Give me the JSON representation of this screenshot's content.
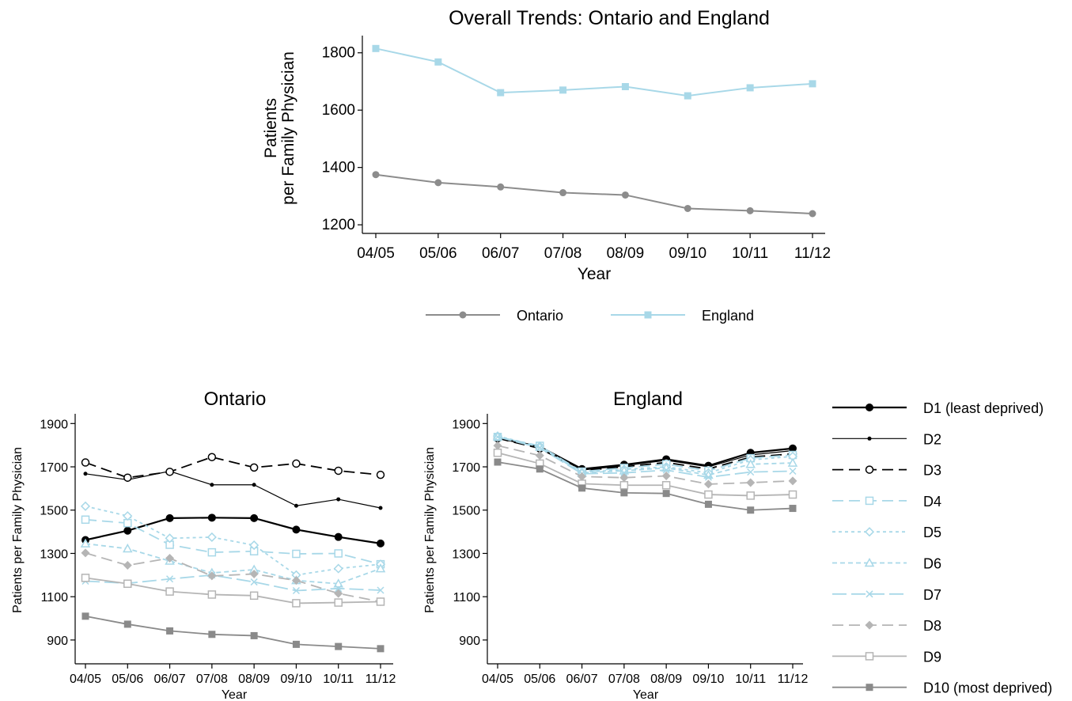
{
  "chart_data": [
    {
      "type": "line",
      "title": "Overall Trends: Ontario and England",
      "xlabel": "Year",
      "ylabel": "Patients per Family Physician",
      "ylabel_lines": [
        "Patients",
        "per Family Physician"
      ],
      "x": [
        "04/05",
        "05/06",
        "06/07",
        "07/08",
        "08/09",
        "09/10",
        "10/11",
        "11/12"
      ],
      "ylim": [
        1170,
        1860
      ],
      "yticks": [
        1200,
        1400,
        1600,
        1800
      ],
      "legend_position": "bottom",
      "series": [
        {
          "name": "Ontario",
          "color": "#8c8c8c",
          "marker": "circle",
          "dash": "solid",
          "values": [
            1375,
            1347,
            1332,
            1312,
            1304,
            1257,
            1249,
            1239
          ]
        },
        {
          "name": "England",
          "color": "#a8d8e8",
          "marker": "square",
          "dash": "solid",
          "values": [
            1815,
            1768,
            1661,
            1670,
            1682,
            1650,
            1678,
            1692
          ]
        }
      ]
    },
    {
      "type": "line",
      "title": "Ontario",
      "xlabel": "Year",
      "ylabel": "Patients per Family Physician",
      "x": [
        "04/05",
        "05/06",
        "06/07",
        "07/08",
        "08/09",
        "09/10",
        "10/11",
        "11/12"
      ],
      "ylim": [
        790,
        1945
      ],
      "yticks": [
        900,
        1100,
        1300,
        1500,
        1700,
        1900
      ],
      "series": [
        {
          "name": "D1 (least deprived)",
          "values": [
            1362,
            1405,
            1463,
            1465,
            1463,
            1410,
            1376,
            1346
          ]
        },
        {
          "name": "D2",
          "values": [
            1668,
            1640,
            1680,
            1617,
            1617,
            1520,
            1550,
            1510
          ]
        },
        {
          "name": "D3",
          "values": [
            1720,
            1650,
            1677,
            1745,
            1697,
            1715,
            1682,
            1663
          ]
        },
        {
          "name": "D4",
          "values": [
            1456,
            1440,
            1340,
            1305,
            1310,
            1298,
            1300,
            1250
          ]
        },
        {
          "name": "D5",
          "values": [
            1518,
            1473,
            1370,
            1375,
            1338,
            1200,
            1230,
            1250
          ]
        },
        {
          "name": "D6",
          "values": [
            1345,
            1322,
            1265,
            1210,
            1225,
            1175,
            1160,
            1230
          ]
        },
        {
          "name": "D7",
          "values": [
            1172,
            1162,
            1182,
            1200,
            1168,
            1128,
            1138,
            1130
          ]
        },
        {
          "name": "D8",
          "values": [
            1302,
            1245,
            1278,
            1196,
            1205,
            1175,
            1115,
            1077
          ]
        },
        {
          "name": "D9",
          "values": [
            1187,
            1160,
            1124,
            1110,
            1105,
            1070,
            1073,
            1077
          ]
        },
        {
          "name": "D10 (most deprived)",
          "values": [
            1010,
            973,
            942,
            926,
            920,
            880,
            870,
            860
          ]
        }
      ]
    },
    {
      "type": "line",
      "title": "England",
      "xlabel": "Year",
      "ylabel": "Patients per Family Physician",
      "x": [
        "04/05",
        "05/06",
        "06/07",
        "07/08",
        "08/09",
        "09/10",
        "10/11",
        "11/12"
      ],
      "ylim": [
        790,
        1945
      ],
      "yticks": [
        900,
        1100,
        1300,
        1500,
        1700,
        1900
      ],
      "series": [
        {
          "name": "D1 (least deprived)",
          "values": [
            1833,
            1793,
            1690,
            1710,
            1735,
            1705,
            1765,
            1785
          ]
        },
        {
          "name": "D2",
          "values": [
            1835,
            1790,
            1685,
            1705,
            1730,
            1700,
            1755,
            1775
          ]
        },
        {
          "name": "D3",
          "values": [
            1832,
            1785,
            1682,
            1700,
            1720,
            1690,
            1745,
            1760
          ]
        },
        {
          "name": "D4",
          "values": [
            1838,
            1797,
            1678,
            1695,
            1712,
            1682,
            1740,
            1755
          ]
        },
        {
          "name": "D5",
          "values": [
            1842,
            1795,
            1674,
            1688,
            1700,
            1672,
            1732,
            1748
          ]
        },
        {
          "name": "D6",
          "values": [
            1840,
            1792,
            1672,
            1682,
            1695,
            1662,
            1712,
            1718
          ]
        },
        {
          "name": "D7",
          "values": [
            1838,
            1788,
            1668,
            1672,
            1685,
            1652,
            1676,
            1680
          ]
        },
        {
          "name": "D8",
          "values": [
            1798,
            1752,
            1655,
            1650,
            1658,
            1620,
            1627,
            1635
          ]
        },
        {
          "name": "D9",
          "values": [
            1765,
            1715,
            1622,
            1615,
            1615,
            1572,
            1567,
            1572
          ]
        },
        {
          "name": "D10 (most deprived)",
          "values": [
            1722,
            1690,
            1602,
            1580,
            1577,
            1527,
            1500,
            1508
          ]
        }
      ]
    }
  ],
  "decile_styles": [
    {
      "color": "#000000",
      "width": 2.2,
      "dash": "",
      "marker": "circle",
      "size": 5
    },
    {
      "color": "#000000",
      "width": 1.2,
      "dash": "",
      "marker": "circle",
      "size": 2.5
    },
    {
      "color": "#000000",
      "width": 1.8,
      "dash": "14,7",
      "marker": "circle-open",
      "size": 4.5
    },
    {
      "color": "#a8d8e8",
      "width": 1.8,
      "dash": "14,7",
      "marker": "square-open",
      "size": 4.5
    },
    {
      "color": "#a8d8e8",
      "width": 1.8,
      "dash": "4,4",
      "marker": "diamond-open",
      "size": 5
    },
    {
      "color": "#a8d8e8",
      "width": 1.8,
      "dash": "6,4",
      "marker": "triangle-open",
      "size": 5
    },
    {
      "color": "#a8d8e8",
      "width": 1.8,
      "dash": "18,6",
      "marker": "x",
      "size": 4
    },
    {
      "color": "#b5b5b5",
      "width": 1.8,
      "dash": "14,7",
      "marker": "diamond",
      "size": 5.5
    },
    {
      "color": "#b5b5b5",
      "width": 1.8,
      "dash": "",
      "marker": "square-open",
      "size": 4.5
    },
    {
      "color": "#8a8a8a",
      "width": 1.8,
      "dash": "",
      "marker": "square",
      "size": 4.5
    }
  ],
  "legend": {
    "items": [
      "D1 (least deprived)",
      "D2",
      "D3",
      "D4",
      "D5",
      "D6",
      "D7",
      "D8",
      "D9",
      "D10 (most deprived)"
    ]
  }
}
